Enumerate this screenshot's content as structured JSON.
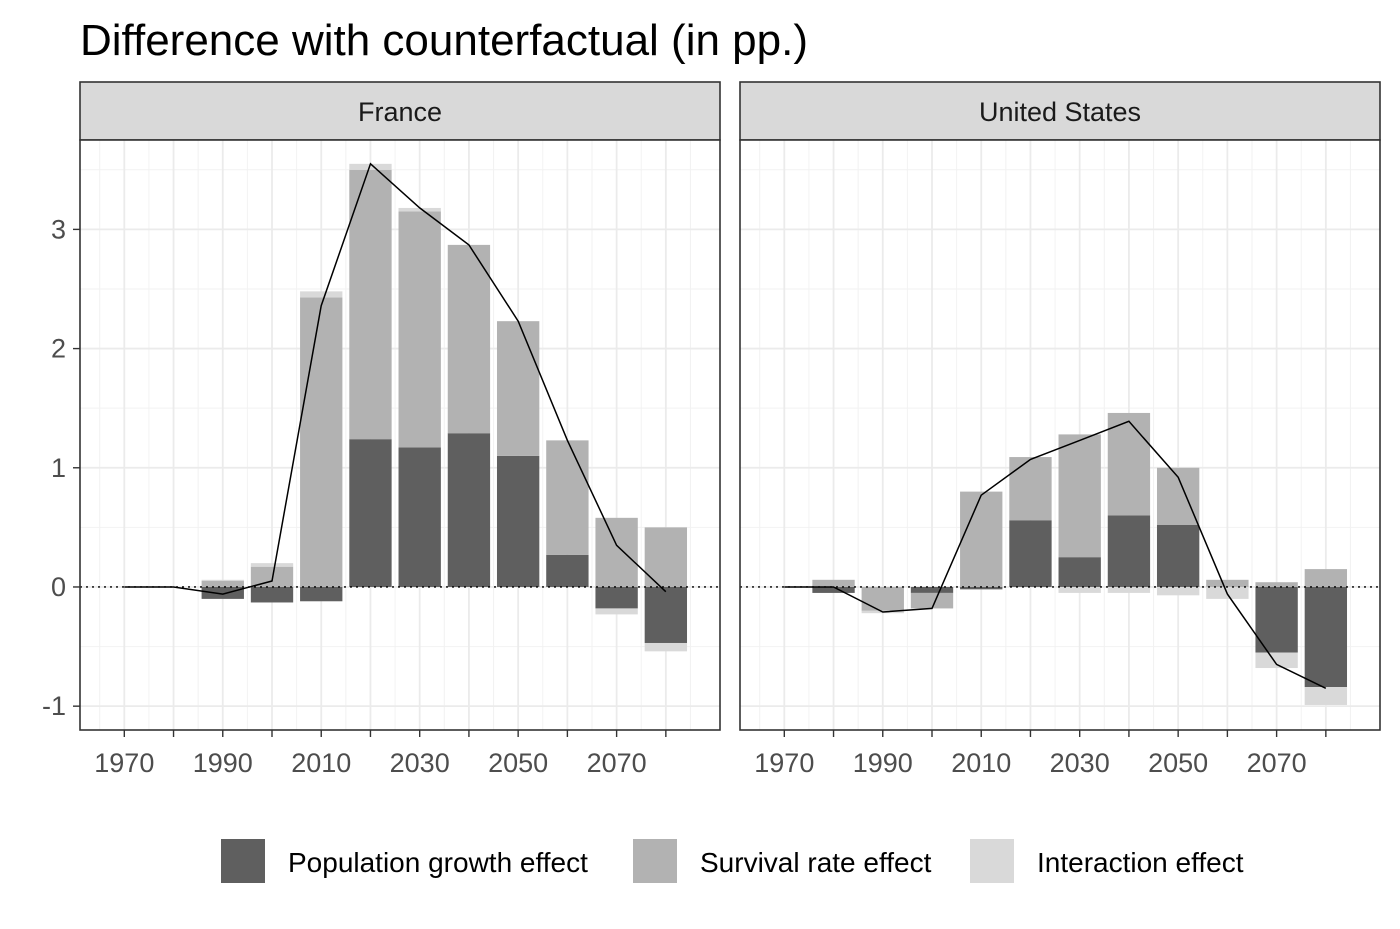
{
  "chart_data": {
    "type": "bar",
    "title": "Difference with counterfactual (in pp.)",
    "xlabel": "",
    "ylabel": "",
    "ylim": [
      -1.2,
      3.75
    ],
    "yticks": [
      -1,
      0,
      1,
      2,
      3
    ],
    "xticks": [
      1970,
      1990,
      2010,
      2030,
      2050,
      2070
    ],
    "x": [
      1970,
      1980,
      1990,
      2000,
      2010,
      2020,
      2030,
      2040,
      2050,
      2060,
      2070,
      2080
    ],
    "legend": {
      "position": "bottom",
      "items": [
        {
          "name": "Population growth effect",
          "color": "#5f5f5f"
        },
        {
          "name": "Survival rate effect",
          "color": "#b2b2b2"
        },
        {
          "name": "Interaction effect",
          "color": "#d9d9d9"
        }
      ]
    },
    "grid": true,
    "colors": {
      "population": "#5f5f5f",
      "survival": "#b2b2b2",
      "interaction": "#d9d9d9",
      "strip": "#d9d9d9",
      "line": "#000000"
    },
    "panels": [
      {
        "name": "France",
        "series": [
          {
            "name": "Population growth effect",
            "values": [
              0,
              0,
              -0.1,
              -0.13,
              -0.12,
              1.24,
              1.17,
              1.29,
              1.1,
              0.27,
              -0.18,
              -0.47
            ]
          },
          {
            "name": "Survival rate effect",
            "values": [
              0,
              0,
              0.05,
              0.17,
              2.43,
              2.26,
              1.98,
              1.58,
              1.13,
              0.96,
              0.58,
              0.5
            ]
          },
          {
            "name": "Interaction effect",
            "values": [
              0,
              0,
              0.01,
              0.03,
              0.05,
              0.05,
              0.03,
              0.0,
              0.0,
              0.0,
              -0.05,
              -0.07
            ]
          }
        ],
        "line": [
          0,
          0,
          -0.06,
          0.05,
          2.36,
          3.55,
          3.18,
          2.87,
          2.23,
          1.23,
          0.35,
          -0.04
        ]
      },
      {
        "name": "United States",
        "series": [
          {
            "name": "Population growth effect",
            "values": [
              0,
              -0.05,
              0,
              -0.05,
              -0.02,
              0.56,
              0.25,
              0.6,
              0.52,
              0.0,
              -0.55,
              -0.84
            ]
          },
          {
            "name": "Survival rate effect",
            "values": [
              0,
              0.06,
              -0.2,
              -0.13,
              0.8,
              0.53,
              1.03,
              0.86,
              0.48,
              0.06,
              0.04,
              0.15
            ]
          },
          {
            "name": "Interaction effect",
            "values": [
              0,
              0,
              -0.02,
              0.0,
              0.0,
              0.0,
              -0.05,
              -0.05,
              -0.07,
              -0.1,
              -0.13,
              -0.15
            ]
          }
        ],
        "line": [
          0,
          0,
          -0.21,
          -0.18,
          0.77,
          1.07,
          1.23,
          1.39,
          0.92,
          -0.06,
          -0.65,
          -0.85
        ]
      }
    ]
  }
}
